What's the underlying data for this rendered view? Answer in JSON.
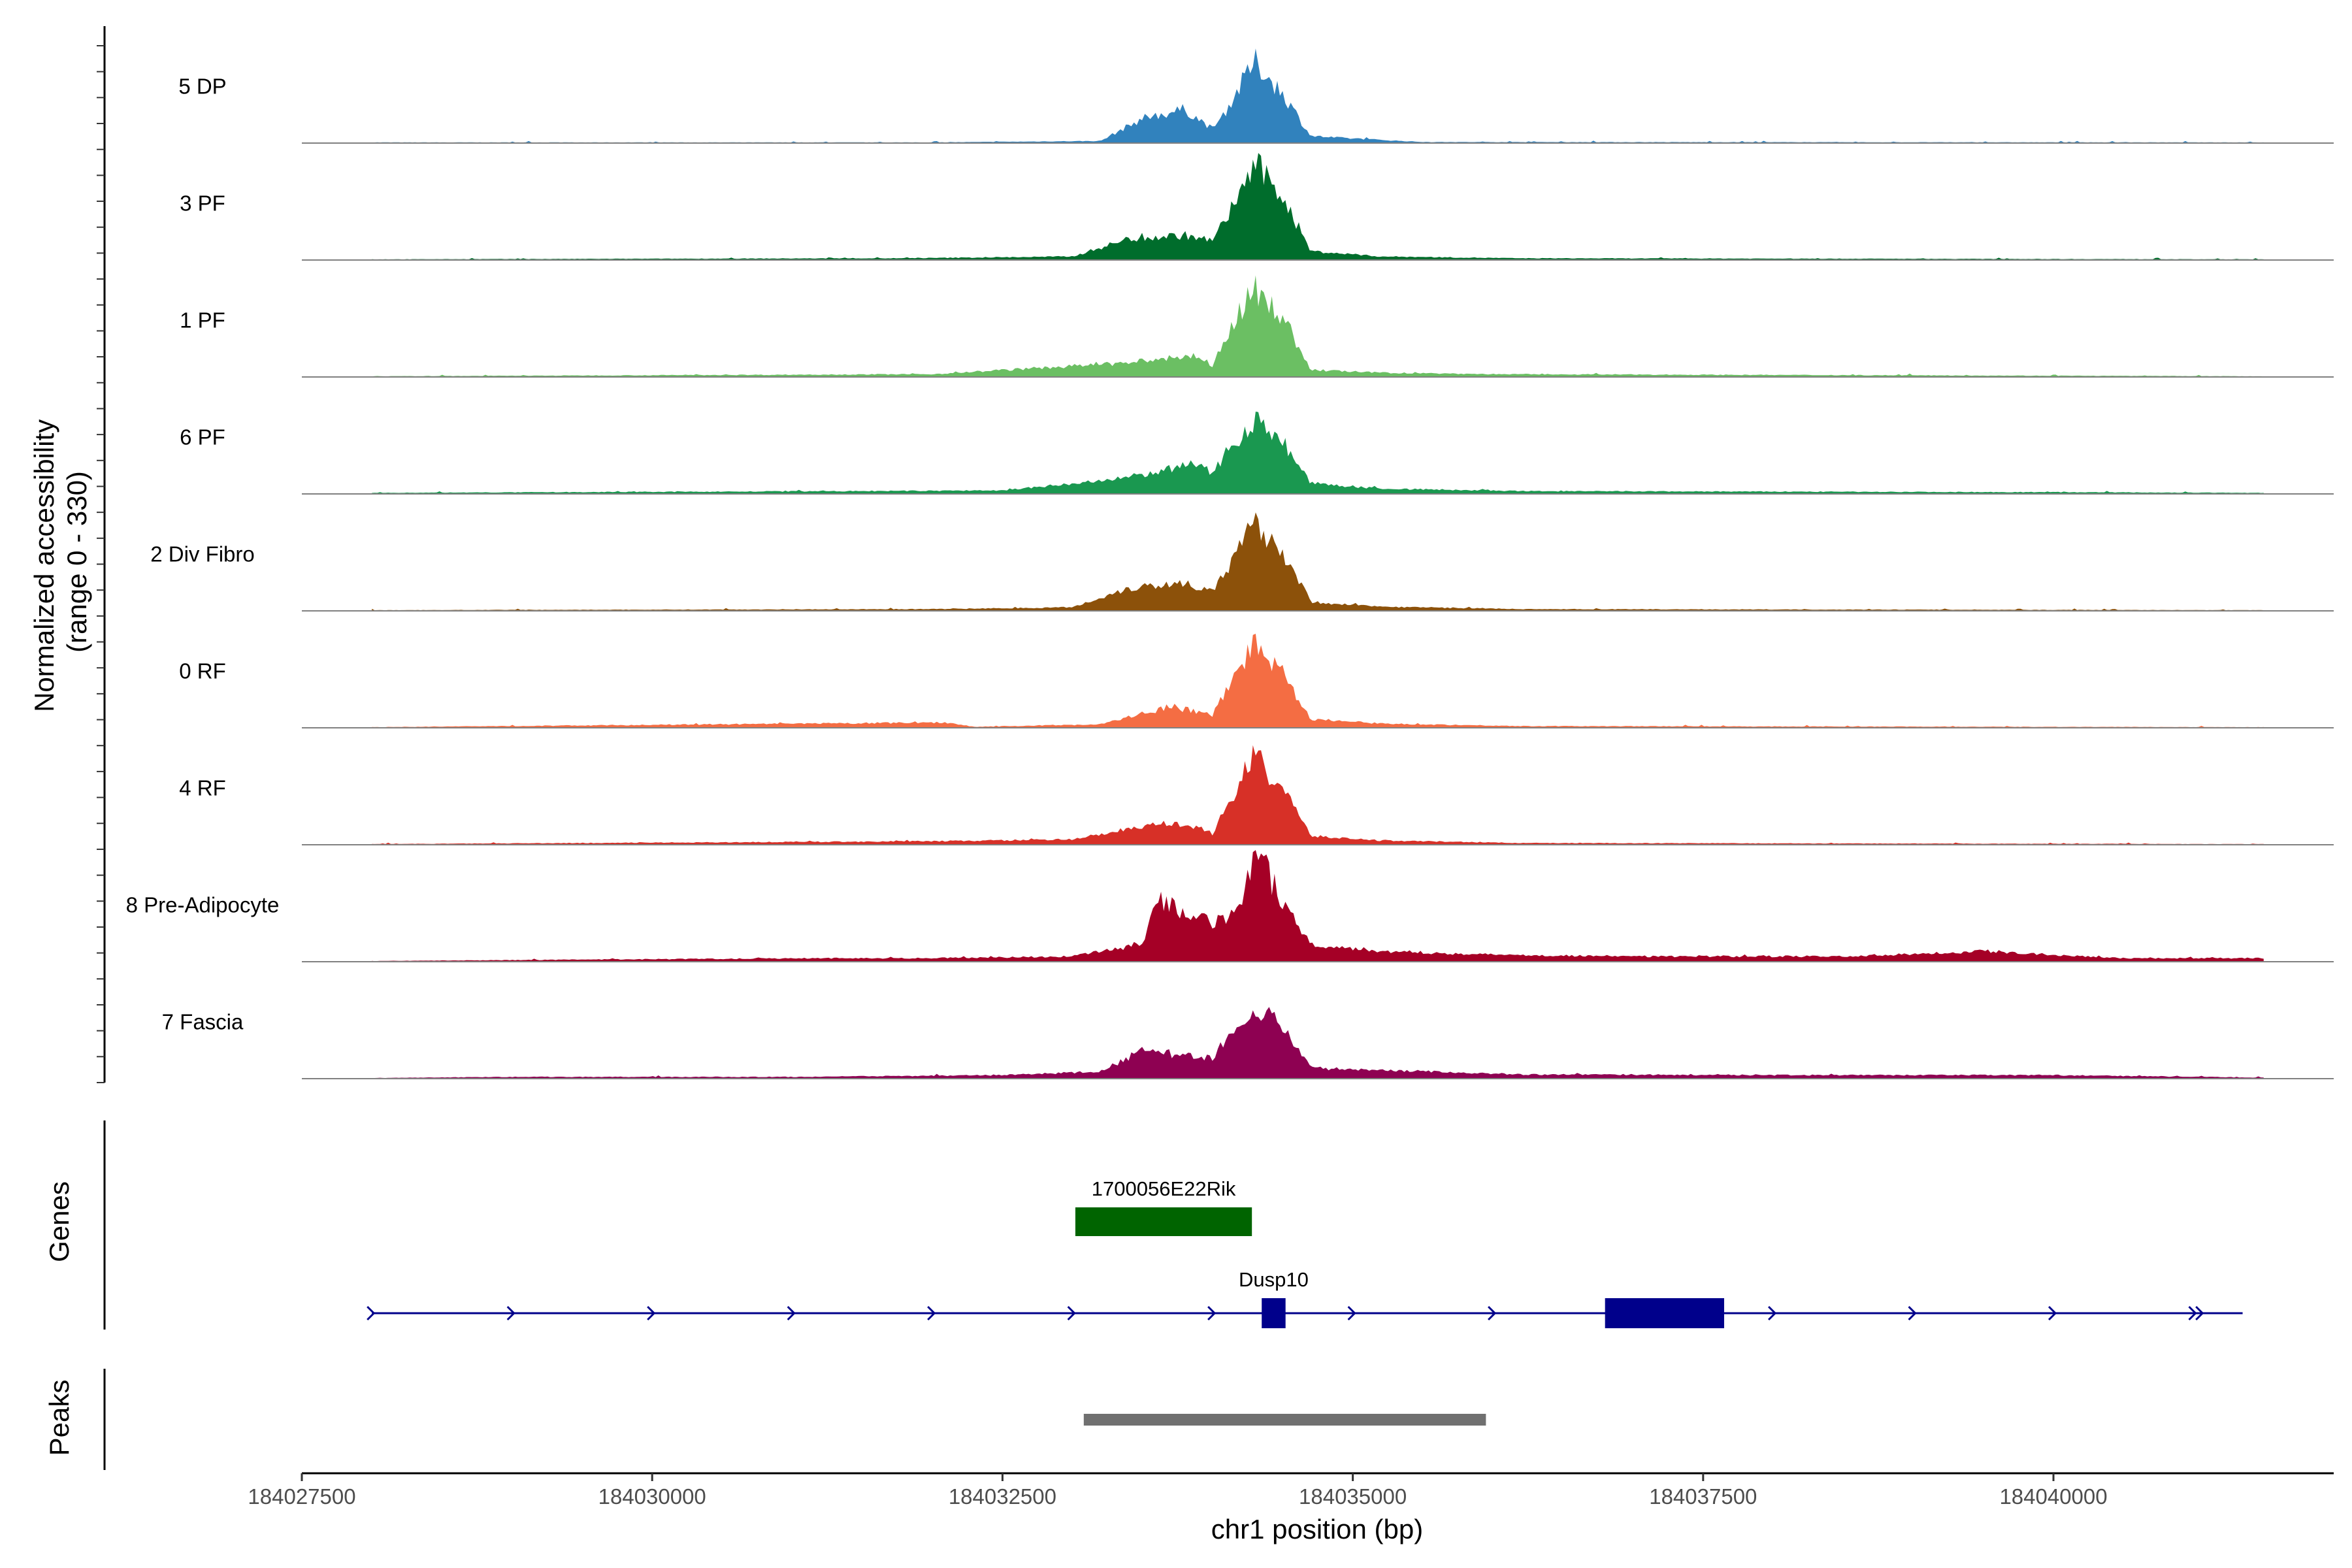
{
  "chart_data": {
    "type": "area",
    "subtype": "genome-coverage-tracks",
    "y_axis_title_line1": "Normalized accessibility",
    "y_axis_title_line2": "(range 0 - 330)",
    "ylim": [
      0,
      330
    ],
    "xlabel": "chr1 position (bp)",
    "xlim": [
      184027500,
      184042000
    ],
    "x_ticks": [
      184027500,
      184030000,
      184032500,
      184035000,
      184037500,
      184040000
    ],
    "x_tick_labels": [
      "184027500",
      "184030000",
      "184032500",
      "184035000",
      "184037500",
      "184040000"
    ],
    "grid": false,
    "tracks": [
      {
        "name": "5 DP",
        "color": "#3182BD",
        "profile": [
          [
            184028000,
            2
          ],
          [
            184032000,
            2
          ],
          [
            184033200,
            6
          ],
          [
            184033500,
            70
          ],
          [
            184033800,
            95
          ],
          [
            184034000,
            40
          ],
          [
            184034100,
            95
          ],
          [
            184034300,
            230
          ],
          [
            184034500,
            140
          ],
          [
            184034700,
            20
          ],
          [
            184034900,
            15
          ],
          [
            184035500,
            3
          ],
          [
            184041500,
            2
          ]
        ]
      },
      {
        "name": "3 PF",
        "color": "#006D2C",
        "profile": [
          [
            184028000,
            2
          ],
          [
            184031800,
            5
          ],
          [
            184033000,
            10
          ],
          [
            184033400,
            60
          ],
          [
            184033800,
            70
          ],
          [
            184034000,
            55
          ],
          [
            184034100,
            120
          ],
          [
            184034300,
            270
          ],
          [
            184034500,
            180
          ],
          [
            184034700,
            25
          ],
          [
            184035200,
            10
          ],
          [
            184036200,
            5
          ],
          [
            184041500,
            2
          ]
        ]
      },
      {
        "name": "1 PF",
        "color": "#6BBF63",
        "profile": [
          [
            184028000,
            2
          ],
          [
            184032000,
            8
          ],
          [
            184033400,
            40
          ],
          [
            184033700,
            55
          ],
          [
            184033900,
            60
          ],
          [
            184034000,
            30
          ],
          [
            184034100,
            120
          ],
          [
            184034300,
            250
          ],
          [
            184034500,
            170
          ],
          [
            184034700,
            20
          ],
          [
            184035200,
            12
          ],
          [
            184036000,
            8
          ],
          [
            184041500,
            2
          ]
        ]
      },
      {
        "name": "6 PF",
        "color": "#1A9850",
        "profile": [
          [
            184028000,
            3
          ],
          [
            184031500,
            8
          ],
          [
            184032500,
            10
          ],
          [
            184033300,
            40
          ],
          [
            184033700,
            70
          ],
          [
            184033900,
            85
          ],
          [
            184034000,
            60
          ],
          [
            184034100,
            120
          ],
          [
            184034300,
            210
          ],
          [
            184034500,
            150
          ],
          [
            184034700,
            30
          ],
          [
            184035200,
            15
          ],
          [
            184036200,
            8
          ],
          [
            184040000,
            5
          ],
          [
            184041500,
            3
          ]
        ]
      },
      {
        "name": "2 Div Fibro",
        "color": "#8C510A",
        "profile": [
          [
            184028000,
            2
          ],
          [
            184032000,
            5
          ],
          [
            184033000,
            10
          ],
          [
            184033400,
            65
          ],
          [
            184033800,
            80
          ],
          [
            184034000,
            55
          ],
          [
            184034100,
            110
          ],
          [
            184034300,
            250
          ],
          [
            184034500,
            170
          ],
          [
            184034700,
            25
          ],
          [
            184035200,
            12
          ],
          [
            184036200,
            5
          ],
          [
            184041500,
            2
          ]
        ]
      },
      {
        "name": "0 RF",
        "color": "#F46D43",
        "profile": [
          [
            184028000,
            2
          ],
          [
            184032100,
            15
          ],
          [
            184032300,
            3
          ],
          [
            184033200,
            10
          ],
          [
            184033500,
            40
          ],
          [
            184033700,
            60
          ],
          [
            184033900,
            45
          ],
          [
            184034000,
            35
          ],
          [
            184034100,
            110
          ],
          [
            184034300,
            240
          ],
          [
            184034500,
            160
          ],
          [
            184034700,
            25
          ],
          [
            184035200,
            12
          ],
          [
            184036200,
            5
          ],
          [
            184041500,
            2
          ]
        ]
      },
      {
        "name": "4 RF",
        "color": "#D73027",
        "profile": [
          [
            184028000,
            2
          ],
          [
            184032000,
            10
          ],
          [
            184033000,
            15
          ],
          [
            184033400,
            45
          ],
          [
            184033700,
            60
          ],
          [
            184033900,
            50
          ],
          [
            184034000,
            30
          ],
          [
            184034100,
            110
          ],
          [
            184034300,
            250
          ],
          [
            184034500,
            160
          ],
          [
            184034700,
            25
          ],
          [
            184035200,
            12
          ],
          [
            184036200,
            5
          ],
          [
            184041500,
            2
          ]
        ]
      },
      {
        "name": "8 Pre-Adipocyte",
        "color": "#A50026",
        "profile": [
          [
            184028000,
            2
          ],
          [
            184031100,
            10
          ],
          [
            184032000,
            10
          ],
          [
            184033000,
            15
          ],
          [
            184033500,
            50
          ],
          [
            184033600,
            180
          ],
          [
            184033800,
            130
          ],
          [
            184034000,
            110
          ],
          [
            184034200,
            140
          ],
          [
            184034300,
            320
          ],
          [
            184034500,
            170
          ],
          [
            184034700,
            50
          ],
          [
            184035200,
            30
          ],
          [
            184036000,
            20
          ],
          [
            184037000,
            15
          ],
          [
            184038500,
            15
          ],
          [
            184039500,
            30
          ],
          [
            184040500,
            10
          ],
          [
            184041500,
            10
          ]
        ]
      },
      {
        "name": "7 Fascia",
        "color": "#8E0152",
        "profile": [
          [
            184028000,
            2
          ],
          [
            184029000,
            5
          ],
          [
            184031000,
            5
          ],
          [
            184032500,
            10
          ],
          [
            184033200,
            20
          ],
          [
            184033500,
            80
          ],
          [
            184033800,
            65
          ],
          [
            184034000,
            60
          ],
          [
            184034100,
            110
          ],
          [
            184034300,
            210
          ],
          [
            184034500,
            150
          ],
          [
            184034700,
            30
          ],
          [
            184035200,
            25
          ],
          [
            184036200,
            12
          ],
          [
            184038000,
            10
          ],
          [
            184040000,
            10
          ],
          [
            184041500,
            3
          ]
        ]
      }
    ],
    "genes": [
      {
        "name": "1700056E22Rik",
        "color": "#006400",
        "start": 184033020,
        "end": 184034280,
        "strand": "",
        "exons": [
          [
            184033020,
            184034280
          ]
        ]
      },
      {
        "name": "Dusp10",
        "color": "#00008B",
        "start": 184028000,
        "end": 184041350,
        "strand": "+",
        "exons": [
          [
            184034350,
            184034520
          ],
          [
            184036800,
            184037650
          ]
        ]
      }
    ],
    "gene_panel_title": "Genes",
    "peaks_panel_title": "Peaks",
    "peaks": [
      {
        "start": 184033080,
        "end": 184035950,
        "color": "#707070"
      }
    ]
  }
}
